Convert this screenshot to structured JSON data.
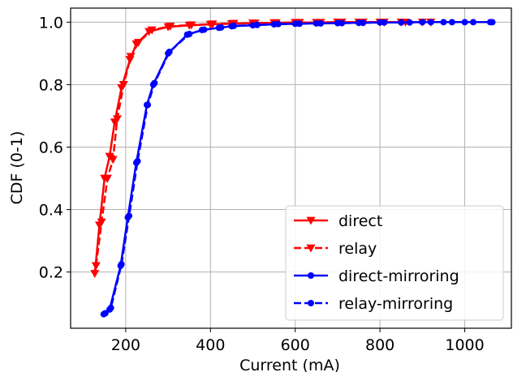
{
  "chart_data": {
    "type": "line",
    "title": "",
    "xlabel": "Current (mA)",
    "ylabel": "CDF (0-1)",
    "xlim": [
      70,
      1110
    ],
    "ylim": [
      0.02,
      1.045
    ],
    "x_ticks": [
      200,
      400,
      600,
      800,
      1000
    ],
    "y_ticks": [
      0.2,
      0.4,
      0.6,
      0.8,
      1.0
    ],
    "x_tick_labels": [
      "200",
      "400",
      "600",
      "800",
      "1000"
    ],
    "y_tick_labels": [
      "0.2",
      "0.4",
      "0.6",
      "0.8",
      "1.0"
    ],
    "grid": true,
    "legend_position": "lower-right",
    "series": [
      {
        "name": "direct",
        "color": "#ff0000",
        "linestyle": "solid",
        "marker": "triangle-down",
        "points": [
          [
            127,
            0.195
          ],
          [
            138,
            0.35
          ],
          [
            150,
            0.5
          ],
          [
            162,
            0.57
          ],
          [
            174,
            0.68
          ],
          [
            190,
            0.79
          ],
          [
            210,
            0.88
          ],
          [
            225,
            0.93
          ],
          [
            255,
            0.97
          ],
          [
            300,
            0.985
          ],
          [
            350,
            0.99
          ],
          [
            400,
            0.993
          ],
          [
            450,
            0.995
          ],
          [
            500,
            0.997
          ],
          [
            550,
            0.998
          ],
          [
            600,
            0.999
          ],
          [
            650,
            0.999
          ],
          [
            700,
            1.0
          ],
          [
            750,
            1.0
          ],
          [
            800,
            1.0
          ],
          [
            850,
            1.0
          ],
          [
            900,
            1.0
          ]
        ]
      },
      {
        "name": "relay",
        "color": "#ff0000",
        "linestyle": "dashed",
        "marker": "triangle-down",
        "points": [
          [
            130,
            0.22
          ],
          [
            143,
            0.36
          ],
          [
            157,
            0.5
          ],
          [
            170,
            0.56
          ],
          [
            180,
            0.69
          ],
          [
            195,
            0.8
          ],
          [
            212,
            0.89
          ],
          [
            230,
            0.935
          ],
          [
            262,
            0.975
          ],
          [
            305,
            0.987
          ],
          [
            355,
            0.991
          ],
          [
            405,
            0.994
          ],
          [
            455,
            0.996
          ],
          [
            505,
            0.997
          ],
          [
            555,
            0.998
          ],
          [
            610,
            0.999
          ],
          [
            660,
            0.999
          ],
          [
            710,
            1.0
          ],
          [
            760,
            1.0
          ],
          [
            810,
            1.0
          ],
          [
            860,
            1.0
          ],
          [
            920,
            1.0
          ]
        ]
      },
      {
        "name": "direct-mirroring",
        "color": "#0000ff",
        "linestyle": "solid",
        "marker": "circle",
        "points": [
          [
            148,
            0.065
          ],
          [
            162,
            0.08
          ],
          [
            188,
            0.22
          ],
          [
            205,
            0.375
          ],
          [
            225,
            0.55
          ],
          [
            250,
            0.735
          ],
          [
            265,
            0.8
          ],
          [
            300,
            0.9
          ],
          [
            345,
            0.96
          ],
          [
            380,
            0.975
          ],
          [
            420,
            0.982
          ],
          [
            450,
            0.987
          ],
          [
            500,
            0.99
          ],
          [
            550,
            0.993
          ],
          [
            600,
            0.995
          ],
          [
            650,
            0.996
          ],
          [
            700,
            0.997
          ],
          [
            750,
            0.998
          ],
          [
            800,
            0.999
          ],
          [
            850,
            0.999
          ],
          [
            900,
            1.0
          ],
          [
            950,
            1.0
          ],
          [
            1000,
            1.0
          ],
          [
            1065,
            1.0
          ]
        ]
      },
      {
        "name": "relay-mirroring",
        "color": "#0000ff",
        "linestyle": "dashed",
        "marker": "circle",
        "points": [
          [
            152,
            0.068
          ],
          [
            165,
            0.085
          ],
          [
            190,
            0.225
          ],
          [
            208,
            0.38
          ],
          [
            228,
            0.555
          ],
          [
            252,
            0.735
          ],
          [
            268,
            0.805
          ],
          [
            303,
            0.905
          ],
          [
            350,
            0.962
          ],
          [
            385,
            0.976
          ],
          [
            425,
            0.983
          ],
          [
            455,
            0.988
          ],
          [
            510,
            0.991
          ],
          [
            560,
            0.994
          ],
          [
            610,
            0.995
          ],
          [
            660,
            0.996
          ],
          [
            710,
            0.997
          ],
          [
            760,
            0.998
          ],
          [
            810,
            0.999
          ],
          [
            870,
            0.999
          ],
          [
            920,
            1.0
          ],
          [
            970,
            1.0
          ],
          [
            1020,
            1.0
          ],
          [
            1060,
            1.0
          ]
        ]
      }
    ]
  }
}
